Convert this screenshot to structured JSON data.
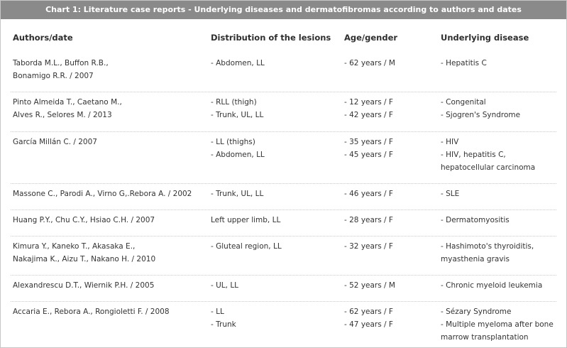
{
  "caption": "Chart 1: Literature case reports - Underlying diseases and dermatofibromas according to authors and dates",
  "headers": {
    "authors": "Authors/date",
    "distribution": "Distribution of the lesions",
    "age_gender": "Age/gender",
    "disease": "Underlying disease"
  },
  "rows": [
    {
      "authors": [
        "Taborda M.L., Buffon R.B.,",
        "Bonamigo R.R. / 2007"
      ],
      "distribution": [
        "- Abdomen, LL"
      ],
      "age_gender": [
        "- 62 years / M"
      ],
      "disease": [
        "- Hepatitis C"
      ]
    },
    {
      "authors": [
        "Pinto Almeida T., Caetano M.,",
        "Alves R., Selores M. / 2013"
      ],
      "distribution": [
        "- RLL (thigh)",
        "- Trunk, UL, LL"
      ],
      "age_gender": [
        "- 12 years / F",
        "- 42 years / F"
      ],
      "disease": [
        "- Congenital",
        "- Sjogren's Syndrome"
      ]
    },
    {
      "authors": [
        "García Millán C. / 2007"
      ],
      "distribution": [
        "- LL (thighs)",
        "- Abdomen, LL"
      ],
      "age_gender": [
        "- 35 years / F",
        "- 45 years / F"
      ],
      "disease": [
        "- HIV",
        "- HIV, hepatitis C,",
        "hepatocellular carcinoma"
      ]
    },
    {
      "authors": [
        "Massone C., Parodi A., Virno G,.Rebora A. / 2002"
      ],
      "distribution": [
        "- Trunk, UL, LL"
      ],
      "age_gender": [
        "- 46 years / F"
      ],
      "disease": [
        "- SLE"
      ]
    },
    {
      "authors": [
        "Huang P.Y., Chu C.Y., Hsiao C.H. / 2007"
      ],
      "distribution": [
        "Left upper limb, LL"
      ],
      "age_gender": [
        "- 28 years / F"
      ],
      "disease": [
        "- Dermatomyositis"
      ]
    },
    {
      "authors": [
        "Kimura Y., Kaneko T., Akasaka E.,",
        "Nakajima K., Aizu T., Nakano H. / 2010"
      ],
      "distribution": [
        "- Gluteal region, LL"
      ],
      "age_gender": [
        "- 32 years / F"
      ],
      "disease": [
        "- Hashimoto's thyroiditis,",
        "myasthenia gravis"
      ]
    },
    {
      "authors": [
        "Alexandrescu D.T., Wiernik P.H. / 2005"
      ],
      "distribution": [
        "- UL, LL"
      ],
      "age_gender": [
        "- 52 years / M"
      ],
      "disease": [
        "- Chronic myeloid leukemia"
      ]
    },
    {
      "authors": [
        "Accaria E., Rebora A., Rongioletti F. / 2008"
      ],
      "distribution": [
        "- LL",
        "- Trunk"
      ],
      "age_gender": [
        "- 62 years / F",
        "- 47 years / F"
      ],
      "disease": [
        "- Sézary Syndrome",
        "- Multiple myeloma after bone",
        "marrow transplantation"
      ]
    }
  ]
}
